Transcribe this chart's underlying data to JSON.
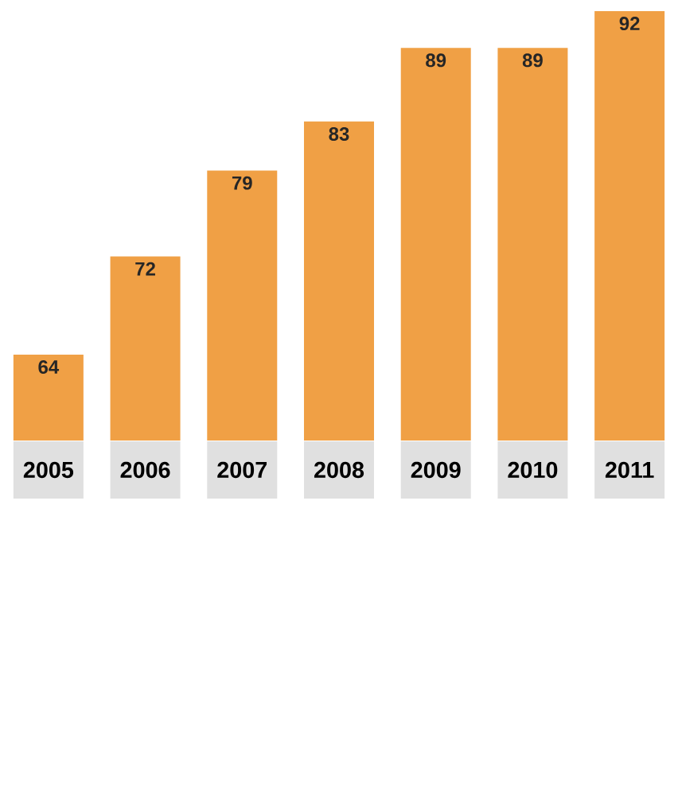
{
  "chart_data": {
    "type": "bar",
    "categories": [
      "2005",
      "2006",
      "2007",
      "2008",
      "2009",
      "2010",
      "2011"
    ],
    "values": [
      64,
      72,
      79,
      83,
      89,
      89,
      92
    ],
    "color": "#f0a045",
    "ylim": [
      57,
      92
    ],
    "data_labels": true
  }
}
